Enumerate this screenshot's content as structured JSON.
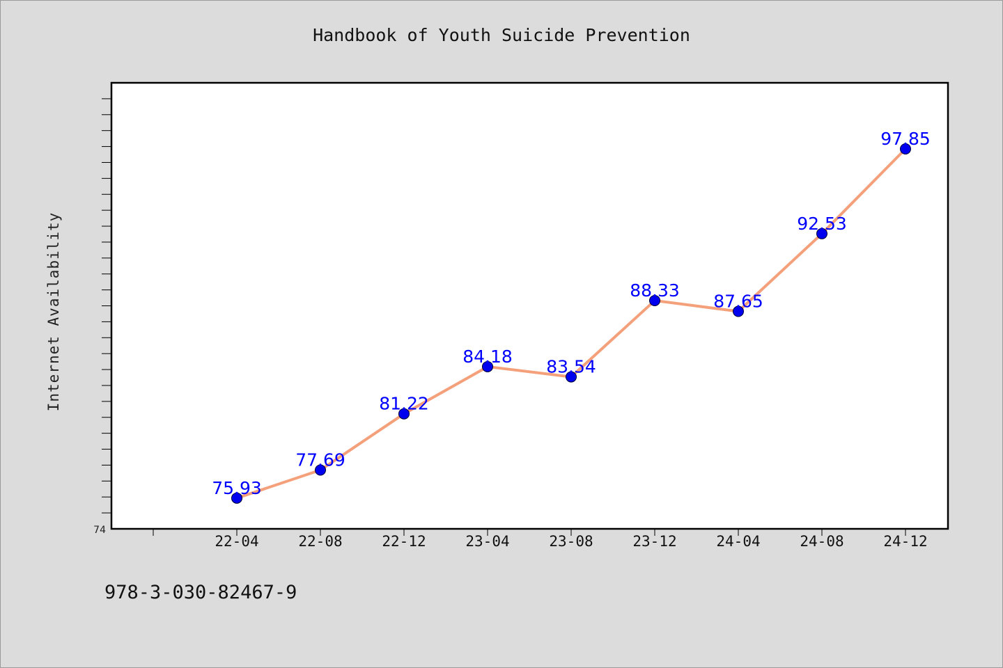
{
  "chart_data": {
    "type": "line",
    "title": "Handbook of Youth Suicide Prevention",
    "xlabel": "",
    "ylabel": "Internet Availability",
    "categories": [
      "22-04",
      "22-08",
      "22-12",
      "23-04",
      "23-08",
      "23-12",
      "24-04",
      "24-08",
      "24-12"
    ],
    "series": [
      {
        "values": [
          75.93,
          77.69,
          81.22,
          84.18,
          83.54,
          88.33,
          87.65,
          92.53,
          97.85
        ],
        "data_labels": [
          "75.93",
          "77.69",
          "81.22",
          "84.18",
          "83.54",
          "88.33",
          "87.65",
          "92.53",
          "97.85"
        ],
        "line_color": "#f4a07a",
        "marker_color": "#0000ee",
        "label_color": "#0000ff"
      }
    ],
    "ylim": [
      74,
      102
    ],
    "y_tick_labels": [
      {
        "value": 74,
        "label": "74"
      }
    ],
    "grid": false,
    "legend": "none"
  },
  "footer": {
    "code": "978-3-030-82467-9"
  },
  "colors": {
    "background": "#dcdcdc",
    "plot_background": "#ffffff",
    "axis": "#000000"
  }
}
